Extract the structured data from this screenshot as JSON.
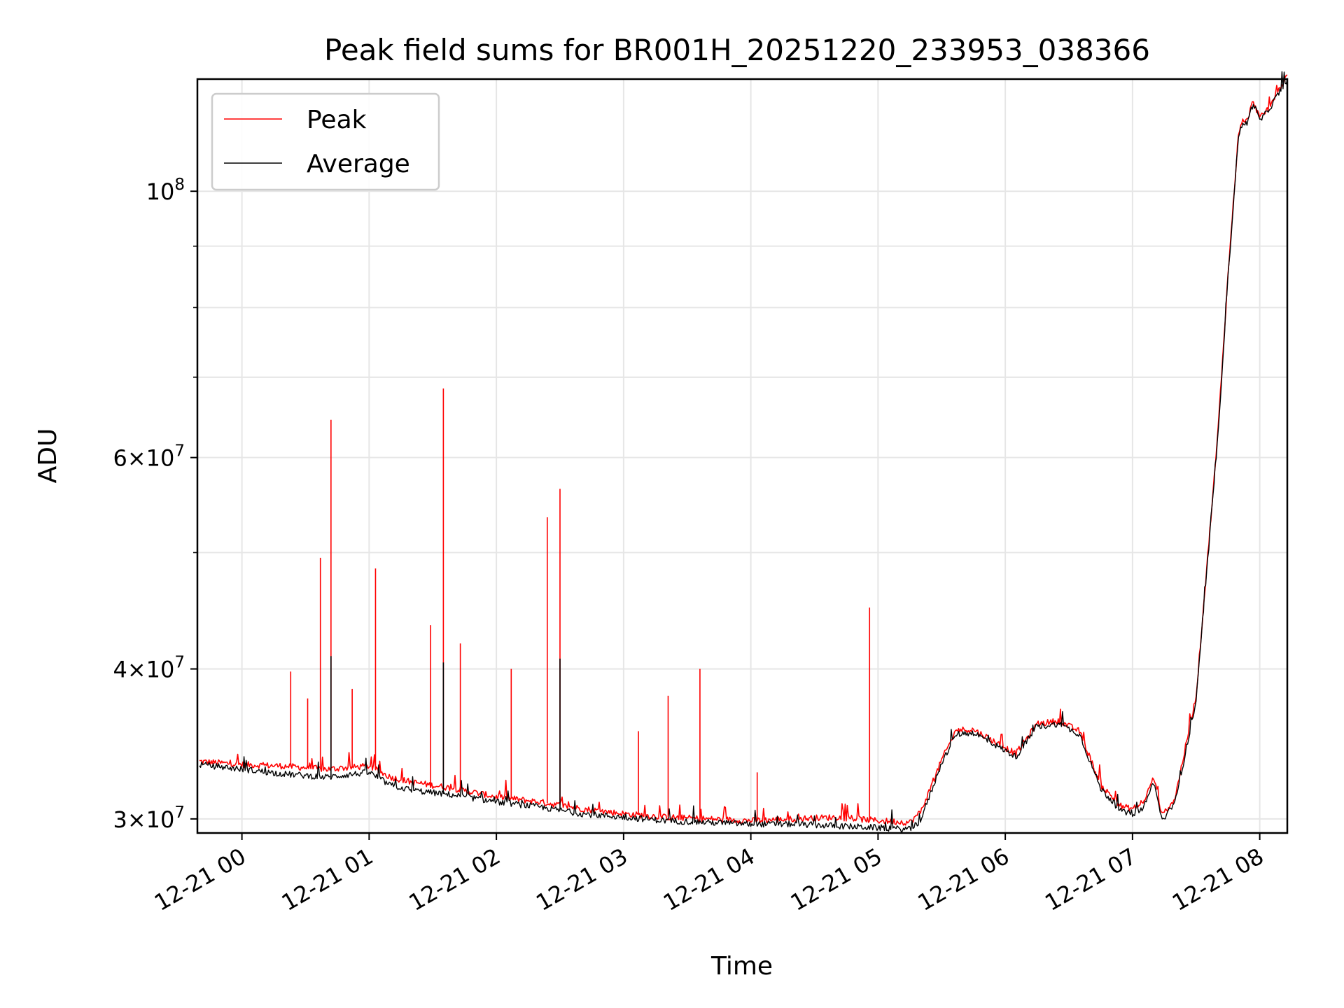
{
  "chart_data": {
    "type": "line",
    "title": "Peak field sums for BR001H_20251220_233953_038366",
    "xlabel": "Time",
    "ylabel": "ADU",
    "y_scale": "log",
    "grid": true,
    "legend": "top-left",
    "xlim": [
      "12-20 23:39",
      "12-21 08:13"
    ],
    "ylim": [
      29200000,
      124000000
    ],
    "x_ticks": [
      "12-21 00",
      "12-21 01",
      "12-21 02",
      "12-21 03",
      "12-21 04",
      "12-21 05",
      "12-21 06",
      "12-21 07",
      "12-21 08"
    ],
    "y_ticks": [
      {
        "value": 30000000,
        "base": "3",
        "exp": "7"
      },
      {
        "value": 40000000,
        "base": "4",
        "exp": "7"
      },
      {
        "value": 60000000,
        "base": "6",
        "exp": "7"
      },
      {
        "value": 100000000,
        "base": "",
        "exp": "8"
      }
    ],
    "y_minor_ticks": [
      50000000,
      70000000,
      80000000,
      90000000
    ],
    "series": [
      {
        "name": "Peak",
        "color": "#ff0000",
        "x": [
          "12-20 23:40",
          "12-21 00:00",
          "12-21 00:20",
          "12-21 00:40",
          "12-21 01:00",
          "12-21 01:10",
          "12-21 01:20",
          "12-21 01:40",
          "12-21 02:00",
          "12-21 02:20",
          "12-21 02:40",
          "12-21 03:00",
          "12-21 03:20",
          "12-21 03:40",
          "12-21 04:00",
          "12-21 04:20",
          "12-21 04:40",
          "12-21 05:00",
          "12-21 05:15",
          "12-21 05:20",
          "12-21 05:25",
          "12-21 05:30",
          "12-21 05:37",
          "12-21 05:45",
          "12-21 05:55",
          "12-21 06:05",
          "12-21 06:15",
          "12-21 06:25",
          "12-21 06:35",
          "12-21 06:45",
          "12-21 06:55",
          "12-21 07:00",
          "12-21 07:05",
          "12-21 07:10",
          "12-21 07:14",
          "12-21 07:20",
          "12-21 07:30",
          "12-21 07:40",
          "12-21 07:45",
          "12-21 07:50",
          "12-21 07:52",
          "12-21 07:54",
          "12-21 07:57",
          "12-21 08:00",
          "12-21 08:02",
          "12-21 08:05",
          "12-21 08:13"
        ],
        "values": [
          33500000,
          33300000,
          33200000,
          33000000,
          33200000,
          32500000,
          32200000,
          31800000,
          31300000,
          31000000,
          30600000,
          30300000,
          30100000,
          30000000,
          29900000,
          30000000,
          30100000,
          29900000,
          29800000,
          30400000,
          31900000,
          33600000,
          35600000,
          35600000,
          34800000,
          34000000,
          36000000,
          36200000,
          35500000,
          32000000,
          30700000,
          30600000,
          30900000,
          32500000,
          30200000,
          31200000,
          38000000,
          62000000,
          85000000,
          112000000,
          114000000,
          114500000,
          119000000,
          115000000,
          116000000,
          118000000,
          125000000
        ]
      },
      {
        "name": "Average",
        "color": "#000000",
        "x": [
          "12-20 23:40",
          "12-21 00:00",
          "12-21 00:20",
          "12-21 00:40",
          "12-21 01:00",
          "12-21 01:10",
          "12-21 01:20",
          "12-21 01:40",
          "12-21 02:00",
          "12-21 02:20",
          "12-21 02:40",
          "12-21 03:00",
          "12-21 03:20",
          "12-21 03:40",
          "12-21 04:00",
          "12-21 04:20",
          "12-21 04:40",
          "12-21 05:00",
          "12-21 05:15",
          "12-21 05:20",
          "12-21 05:25",
          "12-21 05:30",
          "12-21 05:37",
          "12-21 05:45",
          "12-21 05:55",
          "12-21 06:05",
          "12-21 06:15",
          "12-21 06:25",
          "12-21 06:35",
          "12-21 06:45",
          "12-21 06:55",
          "12-21 07:00",
          "12-21 07:05",
          "12-21 07:10",
          "12-21 07:14",
          "12-21 07:20",
          "12-21 07:30",
          "12-21 07:40",
          "12-21 07:45",
          "12-21 07:50",
          "12-21 07:52",
          "12-21 07:54",
          "12-21 07:57",
          "12-21 08:00",
          "12-21 08:02",
          "12-21 08:05",
          "12-21 08:13"
        ],
        "values": [
          33300000,
          33000000,
          32700000,
          32500000,
          32800000,
          32000000,
          31700000,
          31400000,
          31000000,
          30700000,
          30300000,
          30100000,
          29900000,
          29800000,
          29700000,
          29700000,
          29600000,
          29500000,
          29400000,
          29900000,
          31600000,
          33400000,
          35300000,
          35400000,
          34600000,
          33800000,
          35800000,
          36000000,
          35300000,
          31800000,
          30400000,
          30300000,
          30600000,
          32200000,
          29900000,
          30900000,
          37600000,
          61500000,
          84500000,
          111500000,
          113500000,
          114000000,
          118500000,
          114500000,
          115500000,
          117500000,
          124000000
        ]
      }
    ],
    "spikes": [
      {
        "series": "Peak",
        "x": "12-21 00:23",
        "value": 39800000
      },
      {
        "series": "Peak",
        "x": "12-21 00:31",
        "value": 37800000
      },
      {
        "series": "Peak",
        "x": "12-21 00:37",
        "value": 49500000
      },
      {
        "series": "Peak",
        "x": "12-21 00:42",
        "value": 64500000
      },
      {
        "series": "Peak",
        "x": "12-21 00:52",
        "value": 38500000
      },
      {
        "series": "Peak",
        "x": "12-21 01:03",
        "value": 48500000
      },
      {
        "series": "Peak",
        "x": "12-21 01:29",
        "value": 43500000
      },
      {
        "series": "Peak",
        "x": "12-21 01:35",
        "value": 68500000
      },
      {
        "series": "Peak",
        "x": "12-21 01:43",
        "value": 42000000
      },
      {
        "series": "Peak",
        "x": "12-21 02:07",
        "value": 40000000
      },
      {
        "series": "Peak",
        "x": "12-21 02:24",
        "value": 53500000
      },
      {
        "series": "Peak",
        "x": "12-21 02:30",
        "value": 56500000
      },
      {
        "series": "Peak",
        "x": "12-21 03:07",
        "value": 35500000
      },
      {
        "series": "Peak",
        "x": "12-21 03:21",
        "value": 38000000
      },
      {
        "series": "Peak",
        "x": "12-21 03:36",
        "value": 40000000
      },
      {
        "series": "Peak",
        "x": "12-21 04:03",
        "value": 32800000
      },
      {
        "series": "Peak",
        "x": "12-21 04:56",
        "value": 45000000
      },
      {
        "series": "Average",
        "x": "12-21 00:42",
        "value": 41000000
      },
      {
        "series": "Average",
        "x": "12-21 01:35",
        "value": 40500000
      },
      {
        "series": "Average",
        "x": "12-21 02:30",
        "value": 40800000
      }
    ]
  }
}
